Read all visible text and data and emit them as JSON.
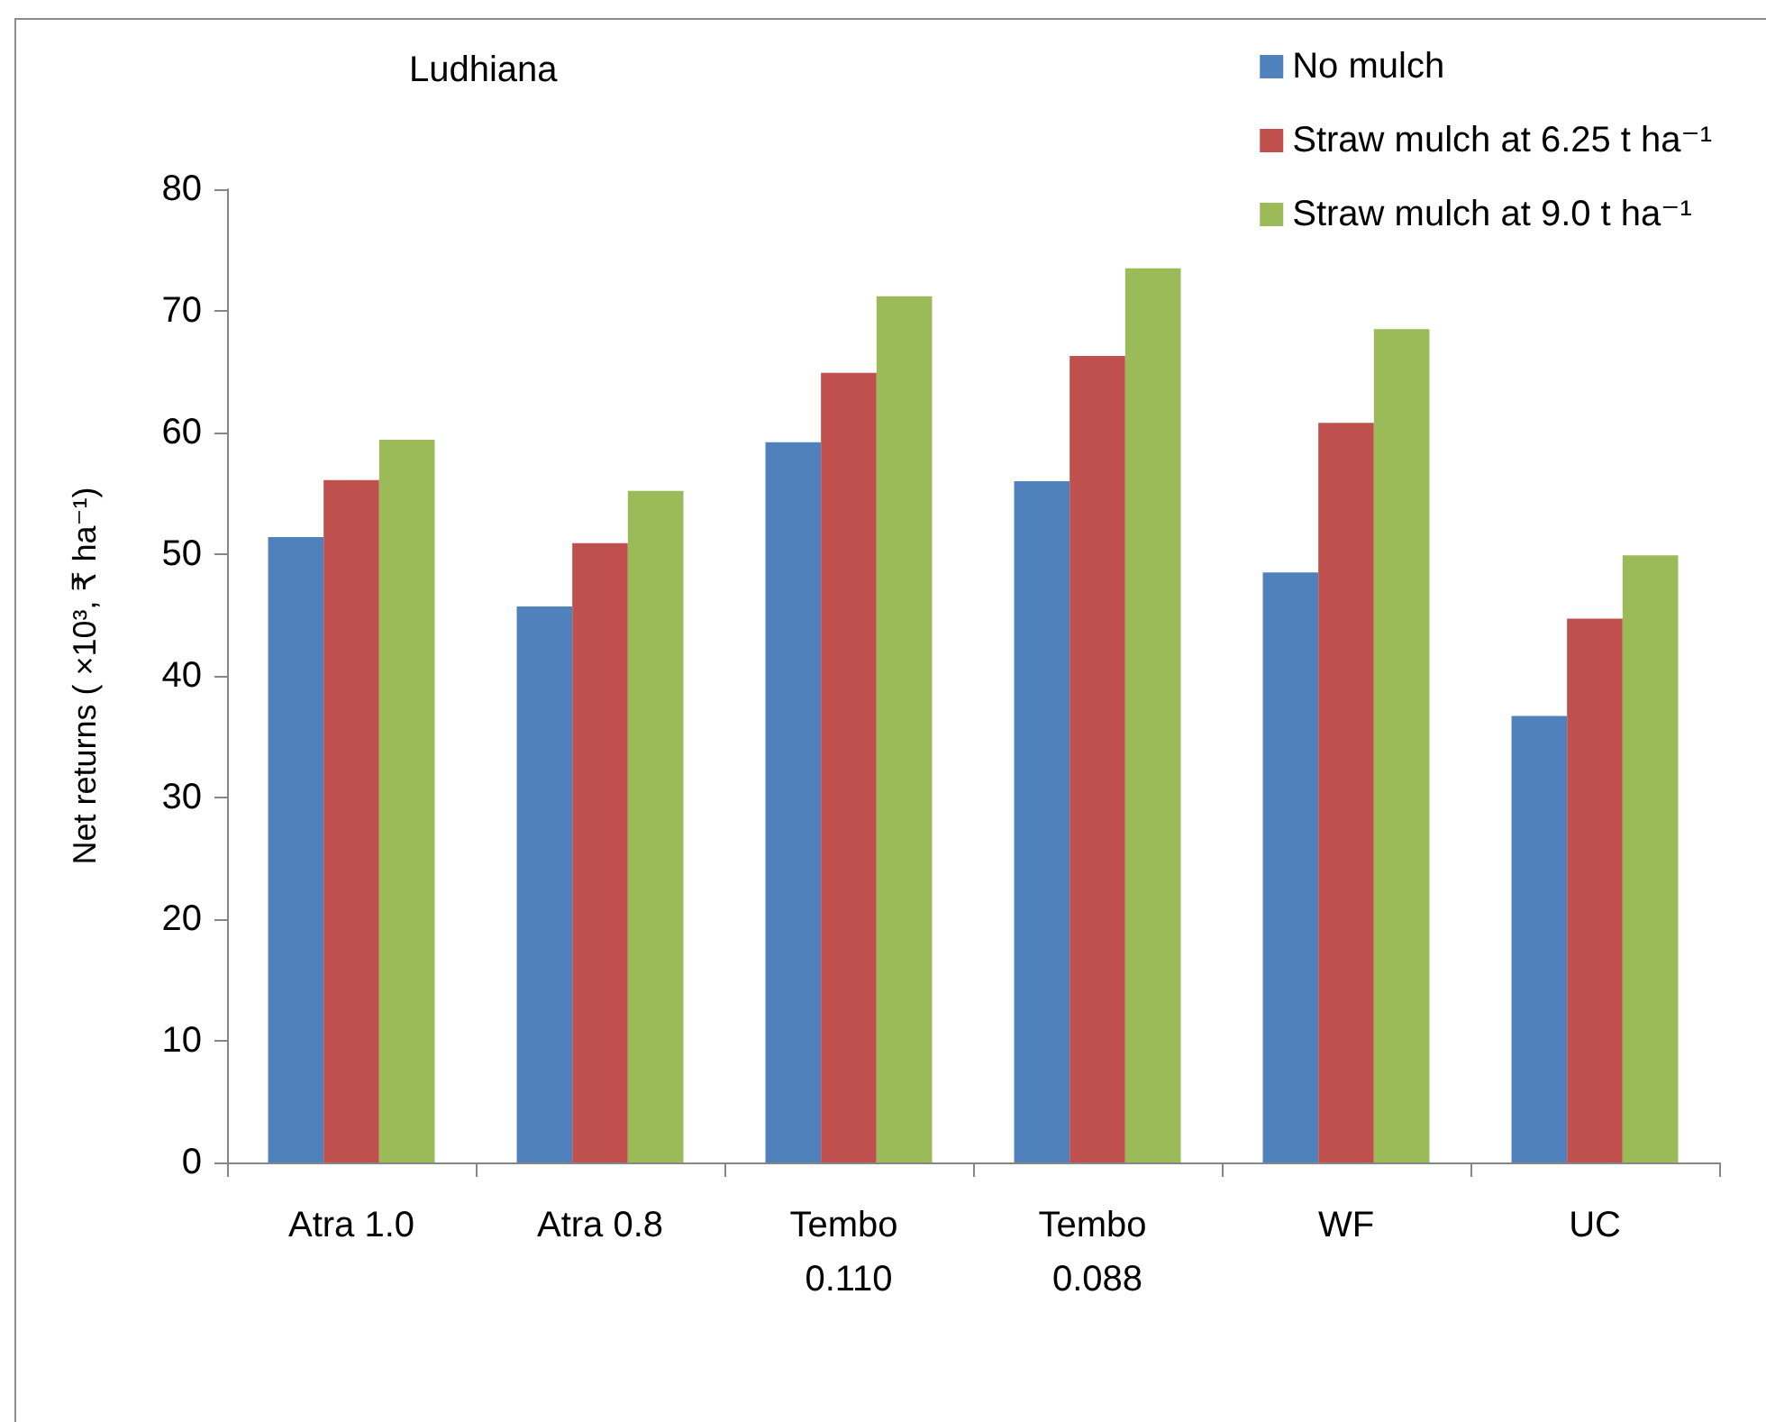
{
  "chart_data": {
    "type": "bar",
    "title": "Ludhiana",
    "ylabel": "Net returns ( ×10³, ₹ ha⁻¹)",
    "categories": [
      "Atra 1.0",
      "Atra 0.8",
      "Tembo 0.110",
      "Tembo 0.088",
      "WF",
      "UC"
    ],
    "series": [
      {
        "name": "No mulch",
        "color": "#4f81bd",
        "values": [
          51.4,
          45.7,
          59.2,
          56.0,
          48.5,
          36.7
        ]
      },
      {
        "name": "Straw mulch at 6.25 t ha⁻¹",
        "color": "#c0504d",
        "values": [
          56.1,
          50.9,
          64.9,
          66.3,
          60.8,
          44.7
        ]
      },
      {
        "name": "Straw mulch at 9.0 t ha⁻¹",
        "color": "#9bbb59",
        "values": [
          59.4,
          55.2,
          71.2,
          73.5,
          68.5,
          49.9
        ]
      }
    ],
    "ylim": [
      0,
      80
    ],
    "yticks": [
      0,
      10,
      20,
      30,
      40,
      50,
      60,
      70,
      80
    ],
    "grid": false,
    "legend": "top right"
  }
}
